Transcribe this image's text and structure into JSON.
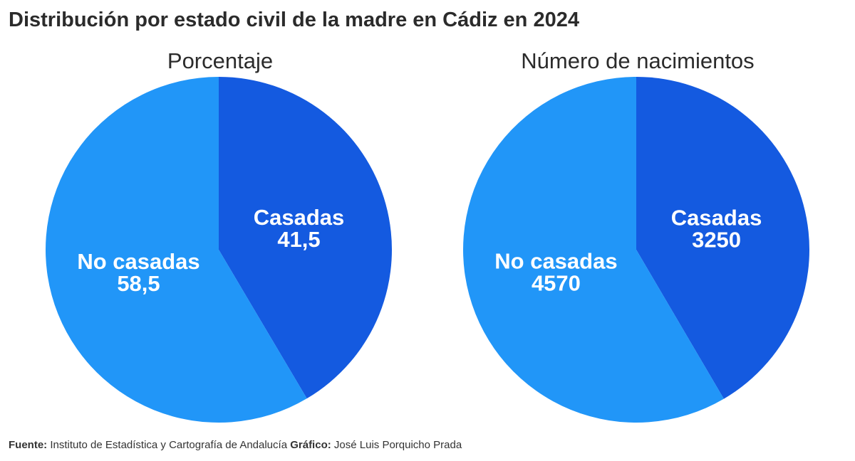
{
  "title": "Distribución por estado civil de la madre en Cádiz en 2024",
  "colors": {
    "casadas": "#145ae0",
    "no_casadas": "#2196f8"
  },
  "chart_data": [
    {
      "type": "pie",
      "title": "Porcentaje",
      "labels": [
        "Casadas",
        "No casadas"
      ],
      "values": [
        41.5,
        58.5
      ],
      "value_labels": [
        "41,5",
        "58,5"
      ]
    },
    {
      "type": "pie",
      "title": "Número de nacimientos",
      "labels": [
        "Casadas",
        "No casadas"
      ],
      "values": [
        3250,
        4570
      ],
      "value_labels": [
        "3250",
        "4570"
      ]
    }
  ],
  "footer": {
    "source_label": "Fuente:",
    "source_text": "Instituto de Estadística y Cartografía de Andalucía",
    "graphic_label": "Gráfico:",
    "graphic_text": "José Luis Porquicho Prada"
  }
}
